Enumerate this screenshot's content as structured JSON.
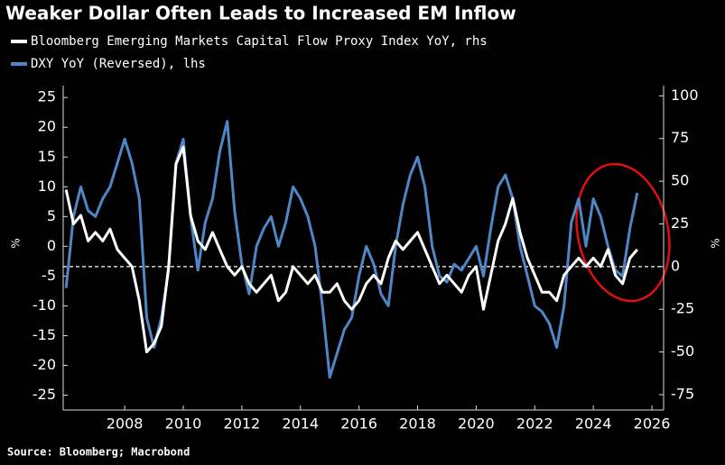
{
  "chart_data": {
    "type": "line",
    "title": "Weaker Dollar Often Leads to Increased EM Inflow",
    "source": "Source: Bloomberg; Macrobond",
    "y_label": "%",
    "y2_label": "%",
    "x": [
      2006,
      2006.25,
      2006.5,
      2006.75,
      2007,
      2007.25,
      2007.5,
      2007.75,
      2008,
      2008.25,
      2008.5,
      2008.75,
      2009,
      2009.25,
      2009.5,
      2009.75,
      2010,
      2010.25,
      2010.5,
      2010.75,
      2011,
      2011.25,
      2011.5,
      2011.75,
      2012,
      2012.25,
      2012.5,
      2012.75,
      2013,
      2013.25,
      2013.5,
      2013.75,
      2014,
      2014.25,
      2014.5,
      2014.75,
      2015,
      2015.25,
      2015.5,
      2015.75,
      2016,
      2016.25,
      2016.5,
      2016.75,
      2017,
      2017.25,
      2017.5,
      2017.75,
      2018,
      2018.25,
      2018.5,
      2018.75,
      2019,
      2019.25,
      2019.5,
      2019.75,
      2020,
      2020.25,
      2020.5,
      2020.75,
      2021,
      2021.25,
      2021.5,
      2021.75,
      2022,
      2022.25,
      2022.5,
      2022.75,
      2023,
      2023.25,
      2023.5,
      2023.75,
      2024,
      2024.25,
      2024.5,
      2024.75,
      2025,
      2025.25,
      2025.5
    ],
    "series": [
      {
        "name": "Bloomberg Emerging Markets Capital Flow Proxy Index YoY, rhs",
        "color": "#ffffff",
        "axis": "y2",
        "values": [
          45,
          25,
          30,
          15,
          20,
          15,
          22,
          10,
          5,
          0,
          -20,
          -50,
          -45,
          -35,
          0,
          60,
          70,
          30,
          15,
          10,
          20,
          10,
          0,
          -5,
          0,
          -10,
          -15,
          -10,
          -5,
          -20,
          -15,
          0,
          -5,
          -10,
          -5,
          -15,
          -15,
          -10,
          -20,
          -25,
          -20,
          -10,
          -5,
          -10,
          5,
          15,
          10,
          15,
          20,
          10,
          0,
          -10,
          -5,
          -10,
          -15,
          -5,
          0,
          -25,
          -5,
          15,
          25,
          40,
          20,
          5,
          -5,
          -15,
          -15,
          -20,
          -5,
          0,
          5,
          0,
          5,
          0,
          10,
          -5,
          -10,
          5,
          10
        ]
      },
      {
        "name": "DXY YoY (Reversed), lhs",
        "color": "#4f86c6",
        "axis": "y",
        "values": [
          -7,
          5,
          10,
          6,
          5,
          8,
          10,
          14,
          18,
          14,
          8,
          -12,
          -17,
          -12,
          -4,
          14,
          18,
          5,
          -4,
          4,
          8,
          16,
          21,
          6,
          -3,
          -8,
          0,
          3,
          5,
          0,
          4,
          10,
          8,
          5,
          0,
          -10,
          -22,
          -18,
          -14,
          -12,
          -5,
          0,
          -3,
          -8,
          -10,
          0,
          7,
          12,
          15,
          10,
          0,
          -5,
          -6,
          -3,
          -4,
          -2,
          0,
          -5,
          3,
          10,
          12,
          8,
          0,
          -5,
          -10,
          -11,
          -13,
          -17,
          -10,
          4,
          8,
          0,
          8,
          5,
          0,
          -4,
          -5,
          3,
          9
        ]
      }
    ],
    "xlim": [
      2005.9,
      2026.4
    ],
    "xticks": [
      2008,
      2010,
      2012,
      2014,
      2016,
      2018,
      2020,
      2022,
      2024,
      2026
    ],
    "ylim": [
      -27.5,
      27
    ],
    "yticks": [
      -25,
      -20,
      -15,
      -10,
      -5,
      0,
      5,
      10,
      15,
      20,
      25
    ],
    "y2lim": [
      -84,
      106
    ],
    "y2ticks": [
      -75,
      -50,
      -25,
      0,
      25,
      50,
      75,
      100
    ]
  }
}
